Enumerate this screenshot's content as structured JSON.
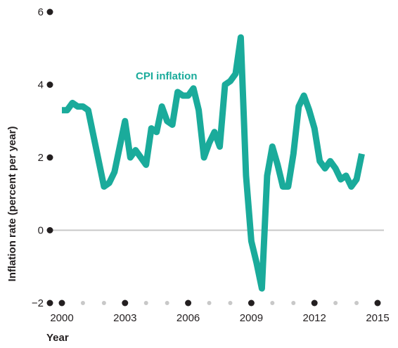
{
  "chart_data": {
    "type": "line",
    "xlabel": "Year",
    "ylabel": "Inflation rate (percent per year)",
    "ylim": [
      -2,
      6
    ],
    "xlim": [
      2000,
      2015
    ],
    "y_ticks": [
      {
        "value": -2,
        "label": "−2"
      },
      {
        "value": 0,
        "label": "0"
      },
      {
        "value": 2,
        "label": "2"
      },
      {
        "value": 4,
        "label": "4"
      },
      {
        "value": 6,
        "label": "6"
      }
    ],
    "x_ticks": [
      {
        "value": 2000,
        "label": "2000"
      },
      {
        "value": 2003,
        "label": "2003"
      },
      {
        "value": 2006,
        "label": "2006"
      },
      {
        "value": 2009,
        "label": "2009"
      },
      {
        "value": 2012,
        "label": "2012"
      },
      {
        "value": 2015,
        "label": "2015"
      }
    ],
    "minor_x_ticks": [
      2001,
      2002,
      2004,
      2005,
      2007,
      2008,
      2010,
      2011,
      2013,
      2014
    ],
    "zero_line": true,
    "colors": {
      "series": "#1aab9b",
      "text": "#231f20",
      "zero_line": "#c8c8c8",
      "minor_tick": "#c8c8c8"
    },
    "series": [
      {
        "name": "CPI inflation",
        "x": [
          2000.0,
          2000.25,
          2000.5,
          2000.75,
          2001.0,
          2001.25,
          2001.5,
          2001.75,
          2002.0,
          2002.25,
          2002.5,
          2002.75,
          2003.0,
          2003.25,
          2003.5,
          2003.75,
          2004.0,
          2004.25,
          2004.5,
          2004.75,
          2005.0,
          2005.25,
          2005.5,
          2005.75,
          2006.0,
          2006.25,
          2006.5,
          2006.75,
          2007.0,
          2007.25,
          2007.5,
          2007.75,
          2008.0,
          2008.25,
          2008.5,
          2008.75,
          2009.0,
          2009.25,
          2009.5,
          2009.75,
          2010.0,
          2010.25,
          2010.5,
          2010.75,
          2011.0,
          2011.25,
          2011.5,
          2011.75,
          2012.0,
          2012.25,
          2012.5,
          2012.75,
          2013.0,
          2013.25,
          2013.5,
          2013.75,
          2014.0,
          2014.25
        ],
        "values": [
          3.3,
          3.3,
          3.5,
          3.4,
          3.4,
          3.3,
          2.6,
          1.9,
          1.2,
          1.3,
          1.6,
          2.3,
          3.0,
          2.0,
          2.2,
          2.0,
          1.8,
          2.8,
          2.7,
          3.4,
          3.0,
          2.9,
          3.8,
          3.7,
          3.7,
          3.9,
          3.3,
          2.0,
          2.4,
          2.7,
          2.3,
          4.0,
          4.1,
          4.3,
          5.3,
          1.5,
          -0.3,
          -0.9,
          -1.6,
          1.5,
          2.3,
          1.8,
          1.2,
          1.2,
          2.1,
          3.4,
          3.7,
          3.3,
          2.8,
          1.9,
          1.7,
          1.9,
          1.7,
          1.4,
          1.5,
          1.2,
          1.4,
          2.1
        ]
      }
    ]
  }
}
